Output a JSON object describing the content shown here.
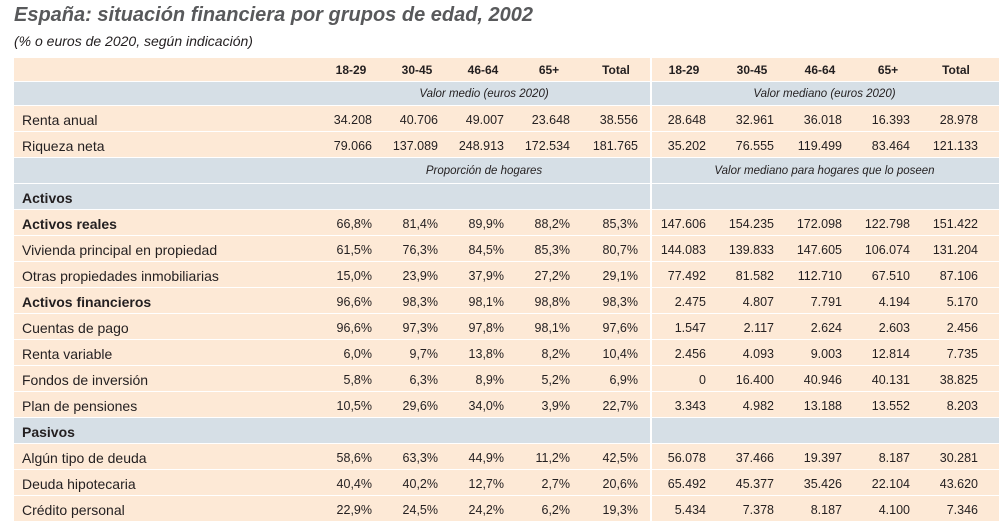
{
  "title": "España: situación financiera por grupos de edad, 2002",
  "subtitle": "(% o euros de 2020, según indicación)",
  "column_headers": [
    "18-29",
    "30-45",
    "46-64",
    "65+",
    "Total",
    "18-29",
    "30-45",
    "46-64",
    "65+",
    "Total"
  ],
  "blocks": [
    {
      "bands": [
        "Valor medio (euros 2020)",
        "Valor mediano (euros 2020)"
      ],
      "rows": [
        {
          "label": "Renta anual",
          "cells": [
            "34.208",
            "40.706",
            "49.007",
            "23.648",
            "38.556",
            "28.648",
            "32.961",
            "36.018",
            "16.393",
            "28.978"
          ]
        },
        {
          "label": "Riqueza neta",
          "cells": [
            "79.066",
            "137.089",
            "248.913",
            "172.534",
            "181.765",
            "35.202",
            "76.555",
            "119.499",
            "83.464",
            "121.133"
          ]
        }
      ]
    },
    {
      "bands": [
        "Proporción de hogares",
        "Valor mediano para hogares que lo poseen"
      ],
      "groups": [
        {
          "heading": "Activos",
          "rows": [
            {
              "label": "Activos reales",
              "bold": true,
              "cells": [
                "66,8%",
                "81,4%",
                "89,9%",
                "88,2%",
                "85,3%",
                "147.606",
                "154.235",
                "172.098",
                "122.798",
                "151.422"
              ]
            },
            {
              "label": "Vivienda principal en propiedad",
              "cells": [
                "61,5%",
                "76,3%",
                "84,5%",
                "85,3%",
                "80,7%",
                "144.083",
                "139.833",
                "147.605",
                "106.074",
                "131.204"
              ]
            },
            {
              "label": "Otras propiedades inmobiliarias",
              "cells": [
                "15,0%",
                "23,9%",
                "37,9%",
                "27,2%",
                "29,1%",
                "77.492",
                "81.582",
                "112.710",
                "67.510",
                "87.106"
              ]
            },
            {
              "label": "Activos financieros",
              "bold": true,
              "cells": [
                "96,6%",
                "98,3%",
                "98,1%",
                "98,8%",
                "98,3%",
                "2.475",
                "4.807",
                "7.791",
                "4.194",
                "5.170"
              ]
            },
            {
              "label": "Cuentas de pago",
              "cells": [
                "96,6%",
                "97,3%",
                "97,8%",
                "98,1%",
                "97,6%",
                "1.547",
                "2.117",
                "2.624",
                "2.603",
                "2.456"
              ]
            },
            {
              "label": "Renta variable",
              "cells": [
                "6,0%",
                "9,7%",
                "13,8%",
                "8,2%",
                "10,4%",
                "2.456",
                "4.093",
                "9.003",
                "12.814",
                "7.735"
              ]
            },
            {
              "label": "Fondos de inversión",
              "cells": [
                "5,8%",
                "6,3%",
                "8,9%",
                "5,2%",
                "6,9%",
                "0",
                "16.400",
                "40.946",
                "40.131",
                "38.825"
              ]
            },
            {
              "label": "Plan de pensiones",
              "cells": [
                "10,5%",
                "29,6%",
                "34,0%",
                "3,9%",
                "22,7%",
                "3.343",
                "4.982",
                "13.188",
                "13.552",
                "8.203"
              ]
            }
          ]
        },
        {
          "heading": "Pasivos",
          "rows": [
            {
              "label": "Algún tipo de deuda",
              "cells": [
                "58,6%",
                "63,3%",
                "44,9%",
                "11,2%",
                "42,5%",
                "56.078",
                "37.466",
                "19.397",
                "8.187",
                "30.281"
              ]
            },
            {
              "label": "Deuda hipotecaria",
              "cells": [
                "40,4%",
                "40,2%",
                "12,7%",
                "2,7%",
                "20,6%",
                "65.492",
                "45.377",
                "35.426",
                "22.104",
                "43.620"
              ]
            },
            {
              "label": "Crédito personal",
              "cells": [
                "22,9%",
                "24,5%",
                "24,2%",
                "6,2%",
                "19,3%",
                "5.434",
                "7.378",
                "8.187",
                "4.100",
                "7.346"
              ]
            }
          ]
        }
      ]
    }
  ]
}
